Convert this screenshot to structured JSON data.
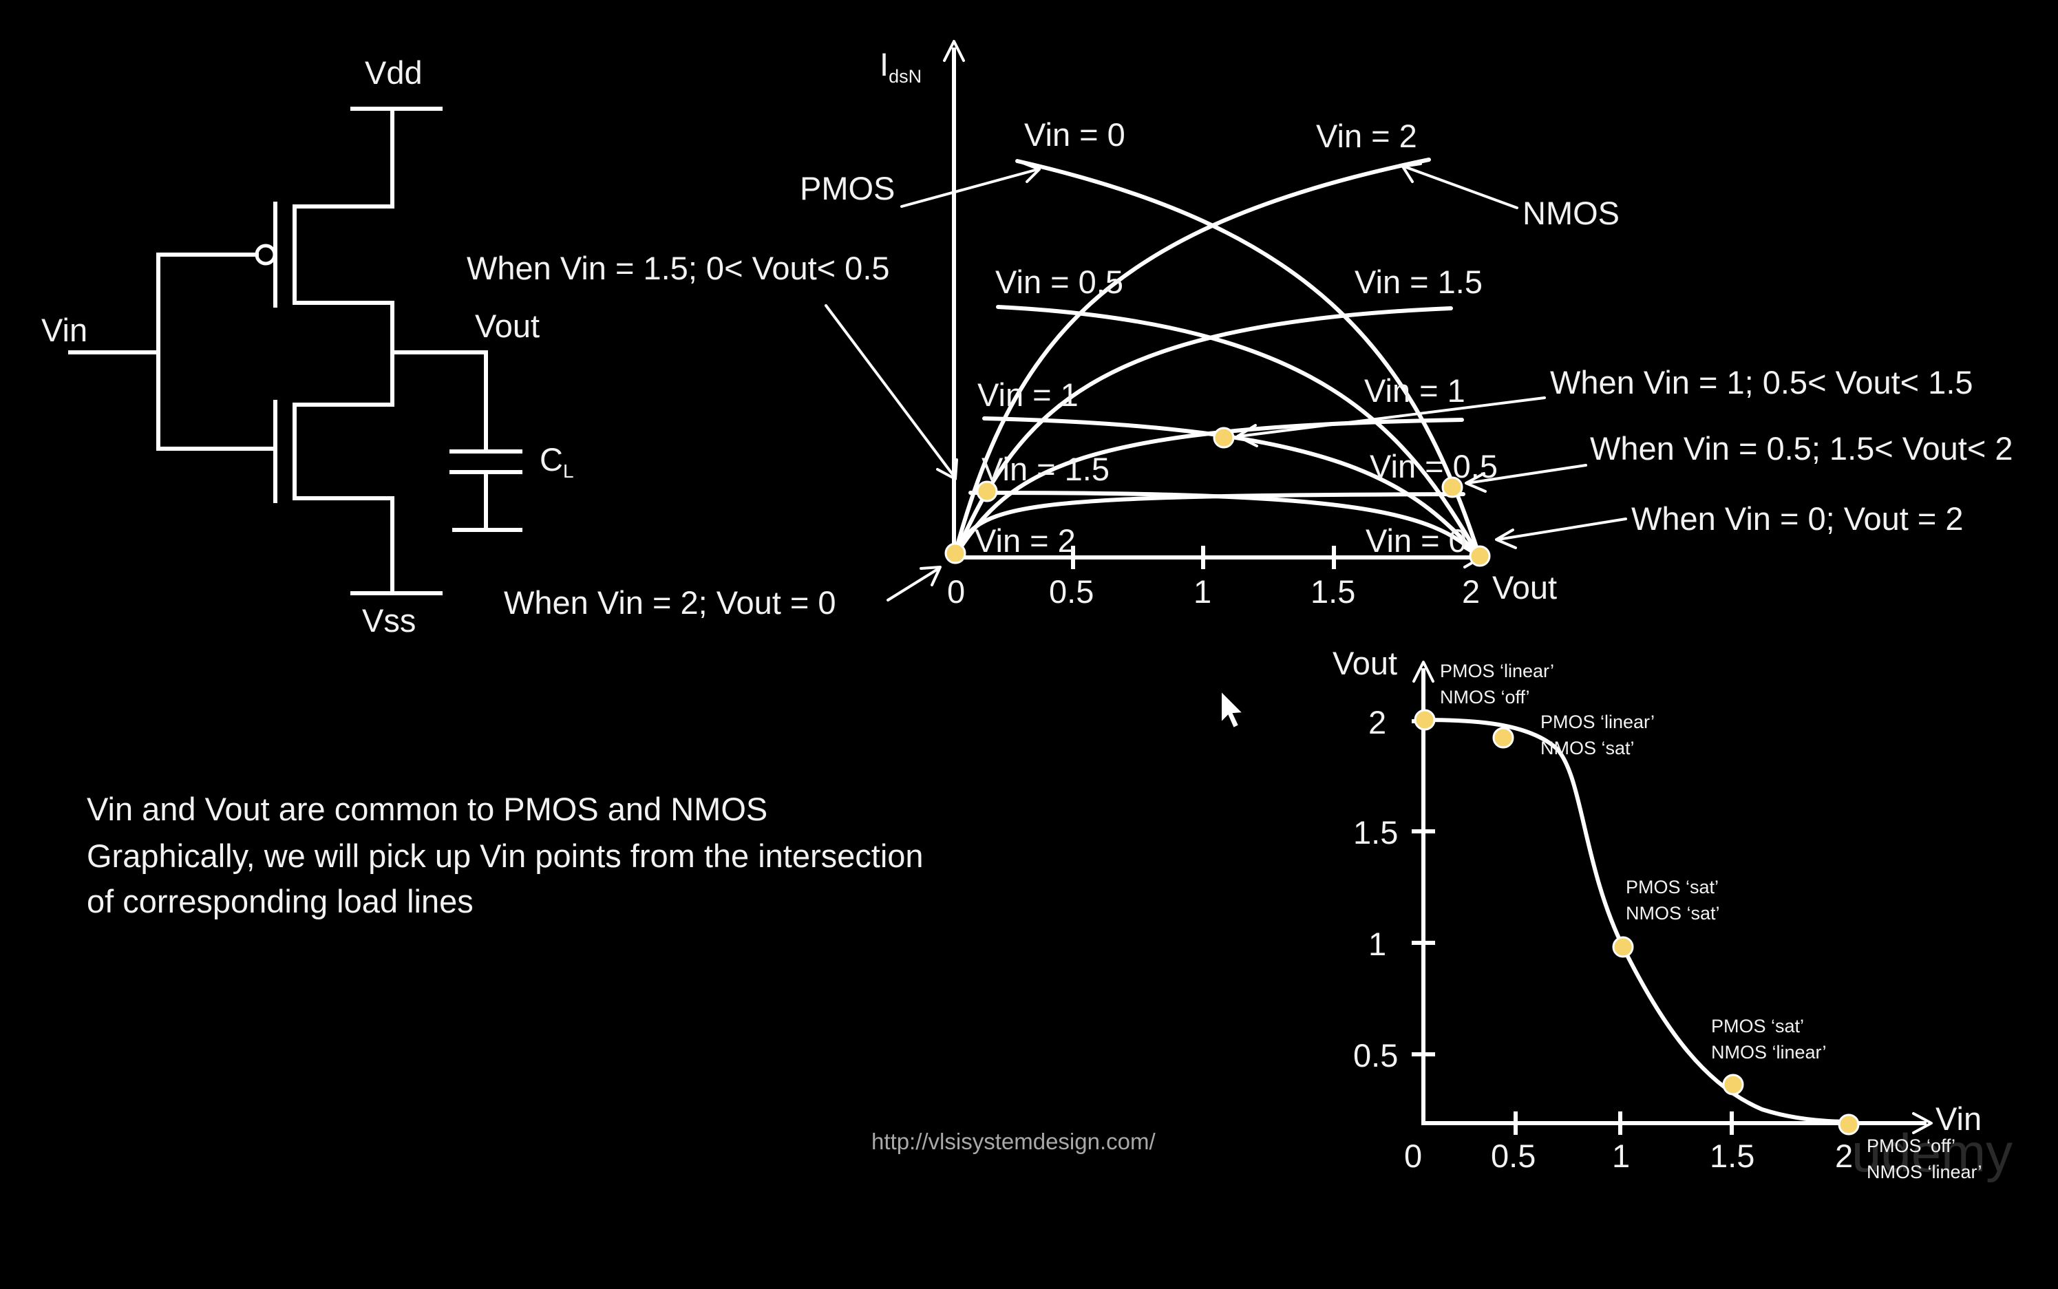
{
  "circuit": {
    "vdd": "Vdd",
    "vss": "Vss",
    "vin": "Vin",
    "vout": "Vout",
    "cap": "C",
    "cap_sub": "L"
  },
  "ids_plot": {
    "ylabel_main": "I",
    "ylabel_sub": "dsN",
    "xlabel": "Vout",
    "x_ticks": [
      "0",
      "0.5",
      "1",
      "1.5",
      "2"
    ],
    "curve_labels": {
      "pmos_0": "Vin = 0",
      "nmos_2": "Vin = 2",
      "pmos_05": "Vin = 0.5",
      "nmos_15": "Vin = 1.5",
      "pmos_1": "Vin = 1",
      "nmos_1": "Vin = 1",
      "pmos_15": "Vin = 1.5",
      "nmos_05": "Vin = 0.5",
      "pmos_2": "Vin = 2",
      "nmos_0": "Vin = 0"
    },
    "pmos": "PMOS",
    "nmos": "NMOS"
  },
  "annotations": {
    "a15": "When Vin = 1.5; 0< Vout< 0.5",
    "a1": "When Vin = 1; 0.5< Vout< 1.5",
    "a05": "When Vin = 0.5; 1.5< Vout< 2",
    "a0": "When Vin = 0; Vout = 2",
    "a2": "When Vin = 2; Vout = 0"
  },
  "vtc": {
    "ylabel": "Vout",
    "xlabel": "Vin",
    "y_ticks": [
      "2",
      "1.5",
      "1",
      "0.5"
    ],
    "x_ticks": [
      "0",
      "0.5",
      "1",
      "1.5",
      "2"
    ],
    "regions": {
      "r1a": "PMOS ‘linear’",
      "r1b": "NMOS ‘off’",
      "r2a": "PMOS ‘linear’",
      "r2b": "NMOS ‘sat’",
      "r3a": "PMOS ‘sat’",
      "r3b": "NMOS ‘sat’",
      "r4a": "PMOS ‘sat’",
      "r4b": "NMOS ‘linear’",
      "r5a": "PMOS ‘off’",
      "r5b": "NMOS ‘linear’"
    }
  },
  "notes": [
    "Vin and Vout are common to PMOS and NMOS",
    "Graphically, we will pick up Vin points from the intersection",
    "of corresponding load lines"
  ],
  "url": "http://vlsisystemdesign.com/",
  "watermark": "udemy",
  "colors": {
    "background": "#000000",
    "stroke": "#ffffff",
    "marker": "#f7d36b"
  }
}
